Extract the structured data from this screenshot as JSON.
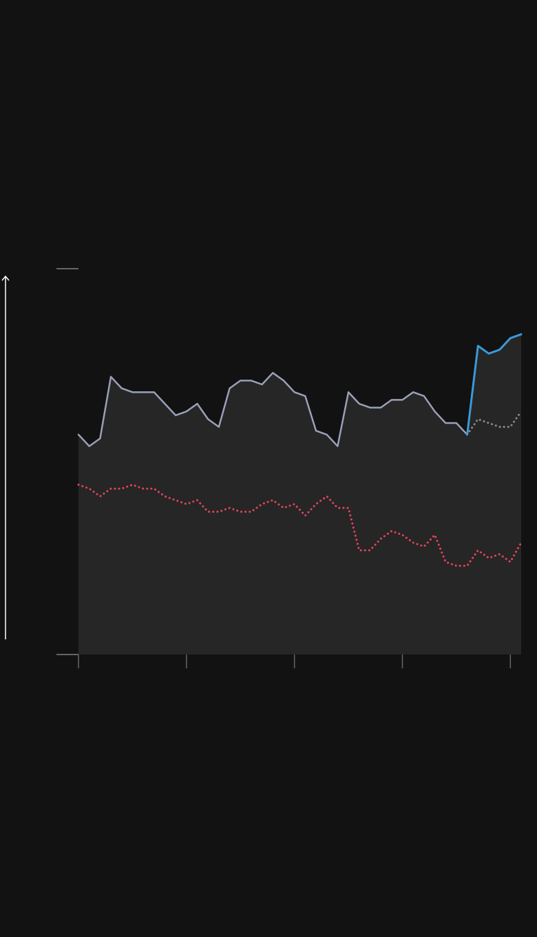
{
  "chart_data": {
    "type": "line",
    "x": [
      0,
      1,
      2,
      3,
      4,
      5,
      6,
      7,
      8,
      9,
      10,
      11,
      12,
      13,
      14,
      15,
      16,
      17,
      18,
      19,
      20,
      21,
      22,
      23,
      24,
      25,
      26,
      27,
      28,
      29,
      30,
      31,
      32,
      33,
      34,
      35,
      36,
      37,
      38,
      39,
      40,
      41
    ],
    "xlim": [
      0,
      41
    ],
    "xticks": [
      0,
      10,
      20,
      30,
      40
    ],
    "ylim": [
      0,
      100
    ],
    "yticks": [
      0,
      100
    ],
    "area_color": "#262626",
    "series": [
      {
        "color": "#9aa0b8",
        "dashed": false,
        "values": [
          57,
          54,
          56,
          72,
          69,
          68,
          68,
          68,
          65,
          62,
          63,
          65,
          61,
          59,
          69,
          71,
          71,
          70,
          73,
          71,
          68,
          67,
          58,
          57,
          54,
          68,
          65,
          64,
          64,
          66,
          66,
          68,
          67,
          63,
          60,
          60,
          57,
          null,
          null,
          null,
          null,
          null
        ]
      },
      {
        "color": "#3a9ad9",
        "dashed": false,
        "values": [
          null,
          null,
          null,
          null,
          null,
          null,
          null,
          null,
          null,
          null,
          null,
          null,
          null,
          null,
          null,
          null,
          null,
          null,
          null,
          null,
          null,
          null,
          null,
          null,
          null,
          null,
          null,
          null,
          null,
          null,
          null,
          null,
          null,
          null,
          null,
          null,
          57,
          80,
          78,
          79,
          82,
          83
        ]
      },
      {
        "color": "#8a8a8a",
        "dashed": true,
        "values": [
          null,
          null,
          null,
          null,
          null,
          null,
          null,
          null,
          null,
          null,
          null,
          null,
          null,
          null,
          null,
          null,
          null,
          null,
          null,
          null,
          null,
          null,
          null,
          null,
          null,
          null,
          null,
          null,
          null,
          null,
          null,
          null,
          null,
          null,
          null,
          null,
          57,
          61,
          60,
          59,
          59,
          63
        ]
      },
      {
        "color": "#e0445a",
        "dashed": true,
        "values": [
          44,
          43,
          41,
          43,
          43,
          44,
          43,
          43,
          41,
          40,
          39,
          40,
          37,
          37,
          38,
          37,
          37,
          39,
          40,
          38,
          39,
          36,
          39,
          41,
          38,
          38,
          27,
          27,
          30,
          32,
          31,
          29,
          28,
          31,
          24,
          23,
          23,
          27,
          25,
          26,
          24,
          29
        ]
      }
    ]
  }
}
